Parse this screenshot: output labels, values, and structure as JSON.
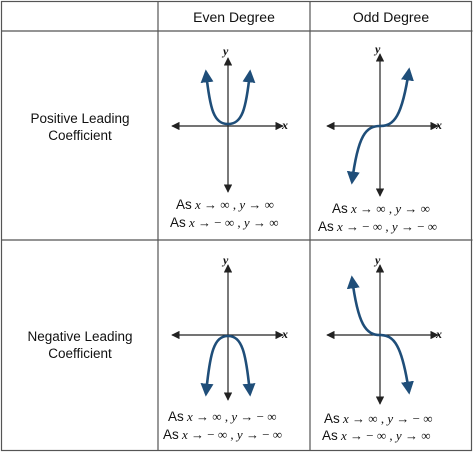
{
  "columns": {
    "even": "Even Degree",
    "odd": "Odd Degree"
  },
  "rows": {
    "positive": {
      "line1": "Positive Leading",
      "line2": "Coefficient"
    },
    "negative": {
      "line1": "Negative Leading",
      "line2": "Coefficient"
    }
  },
  "axis": {
    "x": "x",
    "y": "y"
  },
  "arrow": "→",
  "cells": {
    "pos_even": {
      "l1": {
        "as": "As",
        "var": "x",
        "lim": "∞",
        "var2": "y",
        "lim2": "∞"
      },
      "l2": {
        "as": "As",
        "var": "x",
        "lim": "− ∞",
        "var2": "y",
        "lim2": "∞"
      }
    },
    "pos_odd": {
      "l1": {
        "as": "As",
        "var": "x",
        "lim": "∞",
        "var2": "y",
        "lim2": "∞"
      },
      "l2": {
        "as": "As",
        "var": "x",
        "lim": "− ∞",
        "var2": "y",
        "lim2": "− ∞"
      }
    },
    "neg_even": {
      "l1": {
        "as": "As",
        "var": "x",
        "lim": "∞",
        "var2": "y",
        "lim2": "− ∞"
      },
      "l2": {
        "as": "As",
        "var": "x",
        "lim": "− ∞",
        "var2": "y",
        "lim2": "− ∞"
      }
    },
    "neg_odd": {
      "l1": {
        "as": "As",
        "var": "x",
        "lim": "∞",
        "var2": "y",
        "lim2": "− ∞"
      },
      "l2": {
        "as": "As",
        "var": "x",
        "lim": "− ∞",
        "var2": "y",
        "lim2": "∞"
      }
    }
  },
  "colors": {
    "curve": "#1f4e79",
    "axis": "#222222",
    "grid": "#555555"
  }
}
